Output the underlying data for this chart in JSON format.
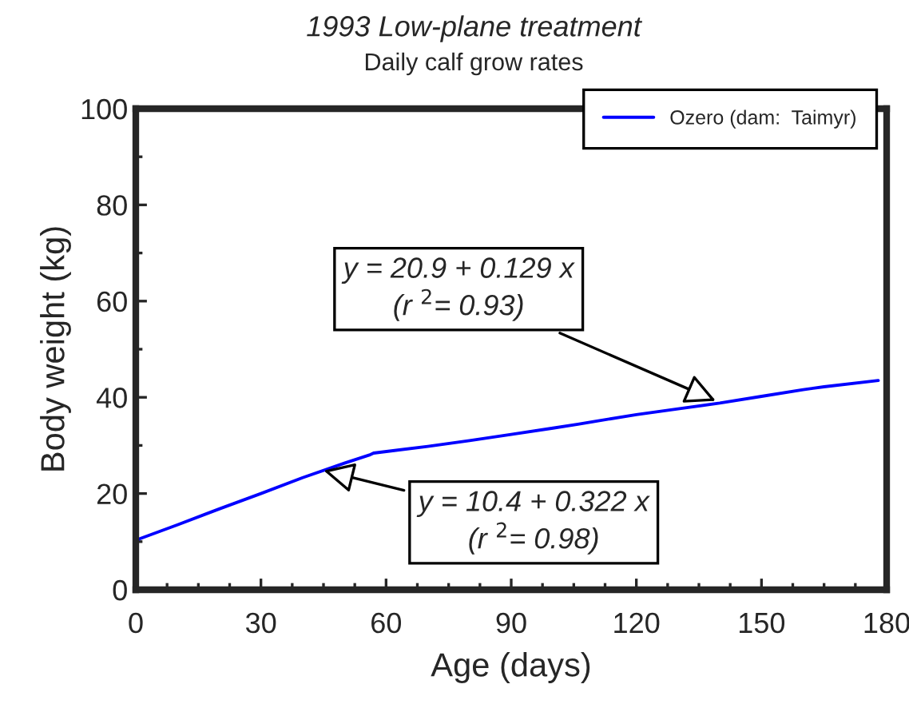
{
  "chart_data": {
    "type": "line",
    "title": "1993 Low-plane treatment",
    "subtitle": "Daily calf grow rates",
    "xlabel": "Age (days)",
    "ylabel": "Body weight (kg)",
    "x": [
      0,
      10,
      20,
      30,
      40,
      50,
      56,
      57,
      70,
      80,
      90,
      100,
      106,
      110,
      120,
      130,
      140,
      150,
      160,
      165,
      178
    ],
    "series": [
      {
        "name": "Ozero (dam:  Taimyr)",
        "color": "#0000ff",
        "values": [
          10.3,
          13.5,
          16.8,
          20,
          23.3,
          26.3,
          28.0,
          28.4,
          29.8,
          31,
          32.3,
          33.6,
          34.4,
          35,
          36.4,
          37.6,
          38.8,
          40.2,
          41.6,
          42.2,
          43.5
        ]
      }
    ],
    "xlim": [
      0,
      180
    ],
    "xticks": [
      0,
      30,
      60,
      90,
      120,
      150,
      180
    ],
    "ylim": [
      0,
      100
    ],
    "yticks": [
      0,
      20,
      40,
      60,
      80,
      100
    ],
    "annotations": [
      {
        "text": "y = 20.9 + 0.129 x\n(r $^{2}$= 0.93)",
        "x": 140,
        "y": 38.9
      },
      {
        "text": "y = 10.4 + 0.322 x\n(r $^{2}$= 0.98)",
        "x": 44,
        "y": 25
      }
    ],
    "legend": "top right",
    "grid": false,
    "marker": "none",
    "line_style": "solid"
  }
}
